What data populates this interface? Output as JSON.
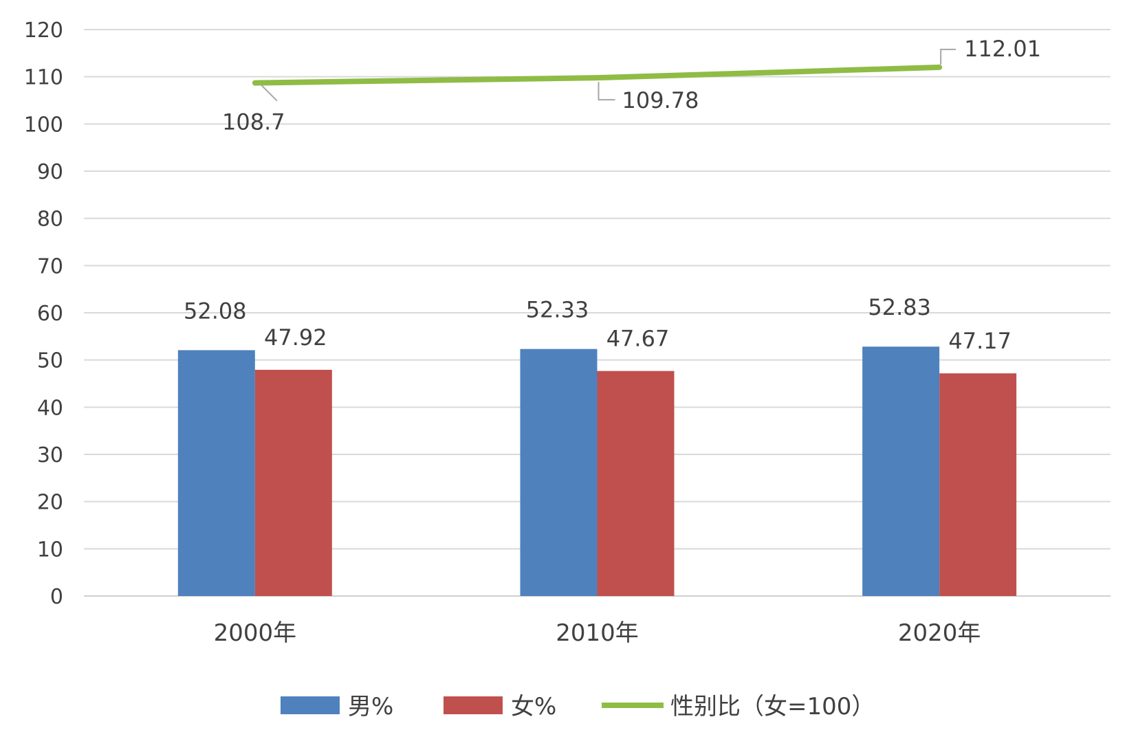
{
  "chart_data": {
    "type": "bar",
    "categories": [
      "2000年",
      "2010年",
      "2020年"
    ],
    "series": [
      {
        "name": "男%",
        "type": "bar",
        "color": "#4f81bd",
        "values": [
          52.08,
          52.33,
          52.83
        ],
        "labels": [
          "52.08",
          "52.33",
          "52.83"
        ]
      },
      {
        "name": "女%",
        "type": "bar",
        "color": "#c0504d",
        "values": [
          47.92,
          47.67,
          47.17
        ],
        "labels": [
          "47.92",
          "47.67",
          "47.17"
        ]
      },
      {
        "name": "性别比（女=100）",
        "type": "line",
        "color": "#8fbc45",
        "values": [
          108.7,
          109.78,
          112.01
        ],
        "labels": [
          "108.7",
          "109.78",
          "112.01"
        ]
      }
    ],
    "yticks": [
      "0",
      "10",
      "20",
      "30",
      "40",
      "50",
      "60",
      "70",
      "80",
      "90",
      "100",
      "110",
      "120"
    ],
    "ylim": [
      0,
      120
    ],
    "grid": true,
    "legend_position": "bottom",
    "title": "",
    "xlabel": "",
    "ylabel": ""
  }
}
